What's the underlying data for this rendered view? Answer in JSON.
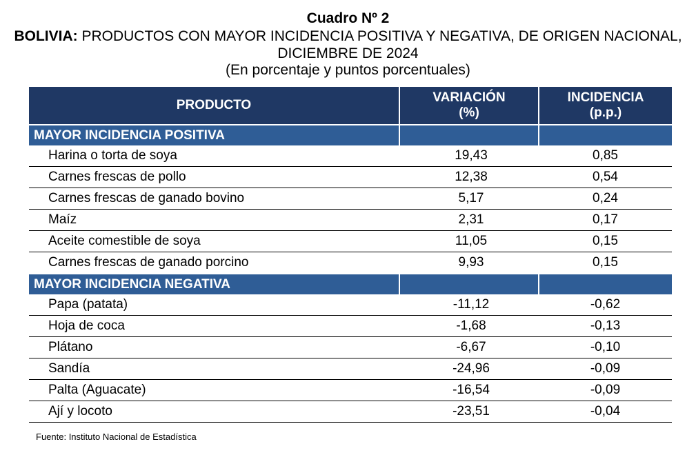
{
  "title": {
    "cuadro": "Cuadro Nº 2",
    "country": "BOLIVIA:",
    "heading": "PRODUCTOS CON MAYOR INCIDENCIA POSITIVA Y NEGATIVA, DE ORIGEN NACIONAL, DICIEMBRE DE 2024",
    "subtitle": "(En porcentaje y puntos porcentuales)"
  },
  "columns": {
    "producto": "PRODUCTO",
    "variacion_line1": "VARIACIÓN",
    "variacion_line2": "(%)",
    "incidencia_line1": "INCIDENCIA",
    "incidencia_line2": "(p.p.)"
  },
  "sections": [
    {
      "label": "MAYOR INCIDENCIA POSITIVA",
      "rows": [
        {
          "producto": "Harina o torta de soya",
          "variacion": "19,43",
          "incidencia": "0,85"
        },
        {
          "producto": "Carnes frescas de pollo",
          "variacion": "12,38",
          "incidencia": "0,54"
        },
        {
          "producto": "Carnes frescas de ganado bovino",
          "variacion": "5,17",
          "incidencia": "0,24"
        },
        {
          "producto": "Maíz",
          "variacion": "2,31",
          "incidencia": "0,17"
        },
        {
          "producto": "Aceite comestible de soya",
          "variacion": "11,05",
          "incidencia": "0,15"
        },
        {
          "producto": "Carnes frescas de ganado porcino",
          "variacion": "9,93",
          "incidencia": "0,15"
        }
      ]
    },
    {
      "label": "MAYOR INCIDENCIA NEGATIVA",
      "rows": [
        {
          "producto": "Papa (patata)",
          "variacion": "-11,12",
          "incidencia": "-0,62"
        },
        {
          "producto": "Hoja de coca",
          "variacion": "-1,68",
          "incidencia": "-0,13"
        },
        {
          "producto": "Plátano",
          "variacion": "-6,67",
          "incidencia": "-0,10"
        },
        {
          "producto": "Sandía",
          "variacion": "-24,96",
          "incidencia": "-0,09"
        },
        {
          "producto": "Palta (Aguacate)",
          "variacion": "-16,54",
          "incidencia": "-0,09"
        },
        {
          "producto": "Ají y locoto",
          "variacion": "-23,51",
          "incidencia": "-0,04"
        }
      ]
    }
  ],
  "source": "Fuente: Instituto Nacional de Estadística",
  "colors": {
    "header_bg": "#1f3864",
    "section_bg": "#2f5d96",
    "header_text": "#ffffff"
  }
}
